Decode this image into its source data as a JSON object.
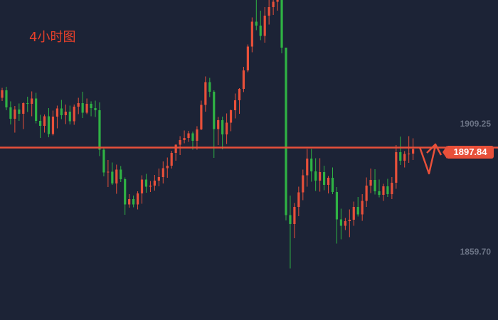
{
  "title": "4小时图",
  "colors": {
    "background": "#1c2336",
    "bull": "#e8503a",
    "bear": "#2fb344",
    "level_line": "#e8503a",
    "label": "#6b7385",
    "title": "#e8402a"
  },
  "chart_data": {
    "type": "candlestick",
    "title": "4小时图",
    "y_tick_labels": [
      "1909.25",
      "1859.70"
    ],
    "ylim": [
      1845,
      1935
    ],
    "grid": false,
    "current_price": "1897.84",
    "horizontal_level": 1893.5,
    "candles": [
      [
        1907.5,
        1910.3,
        1906.6,
        1909.6
      ],
      [
        1909.6,
        1910.6,
        1904.0,
        1904.8
      ],
      [
        1904.8,
        1906.5,
        1900.0,
        1901.6
      ],
      [
        1901.6,
        1905.2,
        1897.7,
        1904.2
      ],
      [
        1904.2,
        1905.9,
        1901.0,
        1903.0
      ],
      [
        1903.0,
        1906.2,
        1898.7,
        1906.0
      ],
      [
        1906.0,
        1907.8,
        1903.5,
        1905.8
      ],
      [
        1905.8,
        1909.3,
        1902.3,
        1907.3
      ],
      [
        1907.3,
        1908.9,
        1900.3,
        1901.0
      ],
      [
        1901.0,
        1902.7,
        1896.2,
        1899.6
      ],
      [
        1899.6,
        1902.8,
        1897.7,
        1902.3
      ],
      [
        1902.3,
        1904.6,
        1896.4,
        1897.3
      ],
      [
        1897.3,
        1903.9,
        1896.9,
        1902.2
      ],
      [
        1902.2,
        1905.3,
        1898.9,
        1904.5
      ],
      [
        1904.5,
        1906.9,
        1901.5,
        1902.6
      ],
      [
        1902.6,
        1905.6,
        1900.1,
        1903.6
      ],
      [
        1903.6,
        1905.3,
        1900.0,
        1900.9
      ],
      [
        1900.9,
        1905.6,
        1899.9,
        1905.0
      ],
      [
        1905.0,
        1907.5,
        1902.9,
        1906.0
      ],
      [
        1906.0,
        1909.2,
        1901.8,
        1903.3
      ],
      [
        1903.3,
        1907.3,
        1902.9,
        1905.8
      ],
      [
        1905.8,
        1906.5,
        1902.3,
        1904.6
      ],
      [
        1904.6,
        1906.7,
        1902.1,
        1904.0
      ],
      [
        1904.0,
        1906.2,
        1891.1,
        1892.9
      ],
      [
        1892.9,
        1893.5,
        1885.4,
        1886.5
      ],
      [
        1886.5,
        1890.0,
        1882.4,
        1886.7
      ],
      [
        1886.7,
        1889.3,
        1883.0,
        1883.4
      ],
      [
        1883.4,
        1888.7,
        1880.5,
        1887.3
      ],
      [
        1887.3,
        1888.3,
        1883.8,
        1884.6
      ],
      [
        1884.6,
        1885.1,
        1874.6,
        1877.5
      ],
      [
        1877.5,
        1880.4,
        1876.6,
        1879.0
      ],
      [
        1879.0,
        1880.0,
        1876.7,
        1877.5
      ],
      [
        1877.5,
        1881.2,
        1876.1,
        1880.6
      ],
      [
        1880.6,
        1885.7,
        1877.7,
        1884.5
      ],
      [
        1884.5,
        1886.1,
        1880.8,
        1882.5
      ],
      [
        1882.5,
        1884.1,
        1881.0,
        1882.8
      ],
      [
        1882.8,
        1885.8,
        1881.4,
        1884.2
      ],
      [
        1884.2,
        1887.6,
        1882.6,
        1885.2
      ],
      [
        1885.2,
        1889.6,
        1883.4,
        1887.7
      ],
      [
        1887.7,
        1890.7,
        1885.0,
        1888.4
      ],
      [
        1888.4,
        1892.6,
        1887.6,
        1892.0
      ],
      [
        1892.0,
        1894.4,
        1889.8,
        1894.3
      ],
      [
        1894.3,
        1896.7,
        1891.4,
        1895.6
      ],
      [
        1895.6,
        1898.3,
        1894.7,
        1896.2
      ],
      [
        1896.2,
        1898.2,
        1895.1,
        1897.5
      ],
      [
        1897.5,
        1898.0,
        1892.9,
        1895.4
      ],
      [
        1895.4,
        1899.5,
        1892.9,
        1898.6
      ],
      [
        1898.6,
        1906.7,
        1898.4,
        1905.5
      ],
      [
        1905.5,
        1913.5,
        1903.6,
        1911.9
      ],
      [
        1911.9,
        1913.1,
        1907.7,
        1909.2
      ],
      [
        1909.2,
        1909.6,
        1890.6,
        1898.7
      ],
      [
        1898.7,
        1902.1,
        1894.2,
        1901.2
      ],
      [
        1901.2,
        1902.2,
        1893.0,
        1897.2
      ],
      [
        1897.2,
        1903.1,
        1894.5,
        1900.5
      ],
      [
        1900.5,
        1904.2,
        1898.1,
        1904.0
      ],
      [
        1904.0,
        1908.7,
        1901.7,
        1906.8
      ],
      [
        1906.8,
        1910.2,
        1903.0,
        1910.0
      ],
      [
        1910.0,
        1916.2,
        1909.1,
        1915.2
      ],
      [
        1915.2,
        1922.5,
        1914.7,
        1921.9
      ],
      [
        1921.9,
        1930.1,
        1920.3,
        1928.9
      ],
      [
        1928.9,
        1935.0,
        1926.5,
        1927.8
      ],
      [
        1927.8,
        1932.0,
        1923.7,
        1924.9
      ],
      [
        1924.9,
        1933.0,
        1923.0,
        1930.6
      ],
      [
        1930.6,
        1935.0,
        1928.1,
        1933.0
      ],
      [
        1933.0,
        1935.0,
        1930.8,
        1934.5
      ],
      [
        1934.5,
        1935.0,
        1932.0,
        1935.0
      ],
      [
        1935.0,
        1935.0,
        1920.0,
        1921.6
      ],
      [
        1921.6,
        1921.6,
        1873.0,
        1874.5
      ],
      [
        1874.5,
        1880.0,
        1859.5,
        1872.0
      ],
      [
        1872.0,
        1877.9,
        1868.0,
        1876.8
      ],
      [
        1876.8,
        1882.5,
        1874.2,
        1880.9
      ],
      [
        1880.9,
        1887.3,
        1878.7,
        1885.7
      ],
      [
        1885.7,
        1893.1,
        1882.5,
        1890.4
      ],
      [
        1890.4,
        1893.1,
        1883.9,
        1886.8
      ],
      [
        1886.8,
        1890.5,
        1881.3,
        1884.2
      ],
      [
        1884.2,
        1890.5,
        1881.1,
        1886.6
      ],
      [
        1886.6,
        1888.4,
        1881.5,
        1883.0
      ],
      [
        1883.0,
        1885.5,
        1880.6,
        1885.0
      ],
      [
        1885.0,
        1887.9,
        1880.4,
        1881.0
      ],
      [
        1881.0,
        1882.4,
        1866.5,
        1873.3
      ],
      [
        1873.3,
        1876.3,
        1867.7,
        1871.5
      ],
      [
        1871.5,
        1873.7,
        1870.3,
        1872.8
      ],
      [
        1872.8,
        1876.1,
        1868.3,
        1873.2
      ],
      [
        1873.2,
        1878.3,
        1871.5,
        1876.8
      ],
      [
        1876.8,
        1879.6,
        1874.1,
        1874.7
      ],
      [
        1874.7,
        1880.4,
        1872.9,
        1878.5
      ],
      [
        1878.5,
        1885.1,
        1876.8,
        1882.8
      ],
      [
        1882.8,
        1887.6,
        1880.7,
        1884.4
      ],
      [
        1884.4,
        1887.4,
        1880.3,
        1881.2
      ],
      [
        1881.2,
        1884.5,
        1879.5,
        1880.2
      ],
      [
        1880.2,
        1883.3,
        1878.5,
        1882.6
      ],
      [
        1882.6,
        1884.7,
        1879.6,
        1880.4
      ],
      [
        1880.4,
        1885.2,
        1879.0,
        1883.6
      ],
      [
        1883.6,
        1894.2,
        1881.9,
        1892.2
      ],
      [
        1892.2,
        1896.6,
        1888.6,
        1889.8
      ],
      [
        1889.8,
        1892.5,
        1887.9,
        1891.7
      ],
      [
        1891.7,
        1896.7,
        1889.2,
        1891.8
      ],
      [
        1891.8,
        1896.1,
        1890.0,
        1893.1
      ]
    ],
    "annotations": [
      "zigzag-arrow-up"
    ]
  }
}
